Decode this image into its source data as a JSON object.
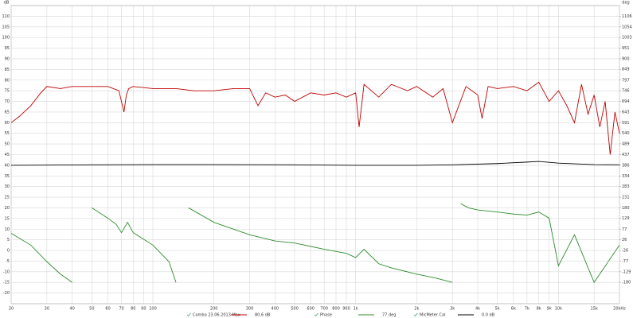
{
  "chart_data": {
    "type": "line",
    "ylabel": "dB",
    "y2label": "deg",
    "xlog": true,
    "grid": true,
    "xlim": [
      20,
      20000
    ],
    "xticks": [
      20,
      30,
      40,
      50,
      60,
      70,
      80,
      90,
      100,
      200,
      300,
      400,
      500,
      600,
      700,
      800,
      900,
      {
        "value": 1000,
        "label": "1k"
      },
      {
        "value": 2000,
        "label": "2k"
      },
      {
        "value": 3000,
        "label": "3k"
      },
      {
        "value": 4000,
        "label": "4k"
      },
      {
        "value": 5000,
        "label": "5k"
      },
      {
        "value": 6000,
        "label": "6k"
      },
      {
        "value": 7000,
        "label": "7k"
      },
      {
        "value": 8000,
        "label": "8k"
      },
      {
        "value": 9000,
        "label": "9k"
      },
      {
        "value": 10000,
        "label": "10k"
      },
      {
        "value": 15000,
        "label": "15k"
      },
      {
        "value": 20000,
        "label": "20kHz"
      }
    ],
    "ylim": [
      -25,
      115
    ],
    "yticks": [
      -20,
      -15,
      -10,
      -5,
      0,
      5,
      10,
      15,
      20,
      25,
      30,
      35,
      40,
      45,
      50,
      55,
      60,
      65,
      70,
      75,
      80,
      85,
      90,
      95,
      100,
      105,
      110
    ],
    "y2lim": [
      -283,
      1157
    ],
    "y2ticks": [
      -180,
      -129,
      -77,
      -26,
      26,
      77,
      129,
      180,
      231,
      283,
      334,
      386,
      437,
      489,
      540,
      591,
      643,
      694,
      746,
      797,
      849,
      900,
      951,
      1003,
      1054,
      1106
    ],
    "series": [
      {
        "name": "Combo 23.06.2013 Max",
        "legend_value": "80.6 dB",
        "color": "#c00000",
        "x": [
          20,
          22,
          25,
          28,
          30,
          35,
          40,
          50,
          60,
          68,
          72,
          74,
          76,
          80,
          100,
          130,
          160,
          200,
          250,
          300,
          330,
          360,
          400,
          450,
          500,
          600,
          700,
          800,
          900,
          1000,
          1040,
          1100,
          1300,
          1500,
          1800,
          2000,
          2400,
          2700,
          3000,
          3500,
          4000,
          4200,
          4500,
          5000,
          6000,
          7000,
          8000,
          9000,
          10000,
          11000,
          12000,
          13000,
          14000,
          15000,
          16000,
          17000,
          18000,
          19000,
          20000
        ],
        "values": [
          60,
          63,
          68,
          74,
          77,
          76,
          77,
          77,
          77,
          75,
          65,
          73,
          76,
          77,
          76,
          76,
          75,
          75,
          76,
          76,
          68,
          74,
          72,
          73,
          70,
          74,
          73,
          74,
          72,
          74,
          58,
          78,
          72,
          78,
          75,
          77,
          72,
          76,
          60,
          77,
          73,
          62,
          77,
          76,
          77,
          75,
          79,
          70,
          75,
          68,
          60,
          78,
          64,
          73,
          58,
          70,
          45,
          65,
          55
        ]
      },
      {
        "name": "Phase",
        "legend_value": "77 deg",
        "color": "#2e8b2e",
        "axis": "y2",
        "x": [
          20,
          25,
          30,
          35,
          40,
          40.1,
          50,
          60,
          66,
          70,
          75,
          80,
          100,
          120,
          130,
          131,
          150,
          200,
          300,
          400,
          500,
          700,
          900,
          1000,
          1100,
          1300,
          1500,
          2000,
          2500,
          3000,
          3200,
          3300,
          3600,
          4000,
          5000,
          6000,
          7000,
          8000,
          9000,
          10000,
          12000,
          15000,
          20000
        ],
        "values": [
          57,
          0,
          -80,
          -140,
          -180,
          null,
          180,
          130,
          100,
          60,
          110,
          60,
          0,
          -80,
          -180,
          null,
          180,
          110,
          50,
          20,
          10,
          -20,
          -40,
          -60,
          -20,
          -90,
          -110,
          -140,
          -160,
          -180,
          null,
          200,
          180,
          170,
          160,
          150,
          145,
          160,
          130,
          -100,
          50,
          -180,
          0
        ]
      },
      {
        "name": "MicMeter Cal",
        "legend_value": "0.0 dB",
        "color": "#000000",
        "x": [
          20,
          50,
          100,
          200,
          500,
          1000,
          2000,
          3000,
          5000,
          7000,
          8000,
          10000,
          15000,
          20000
        ],
        "values": [
          40,
          40.2,
          40.3,
          40.3,
          40.2,
          40,
          40,
          40.2,
          40.8,
          41.5,
          41.8,
          41,
          40.3,
          40.2
        ]
      }
    ]
  }
}
